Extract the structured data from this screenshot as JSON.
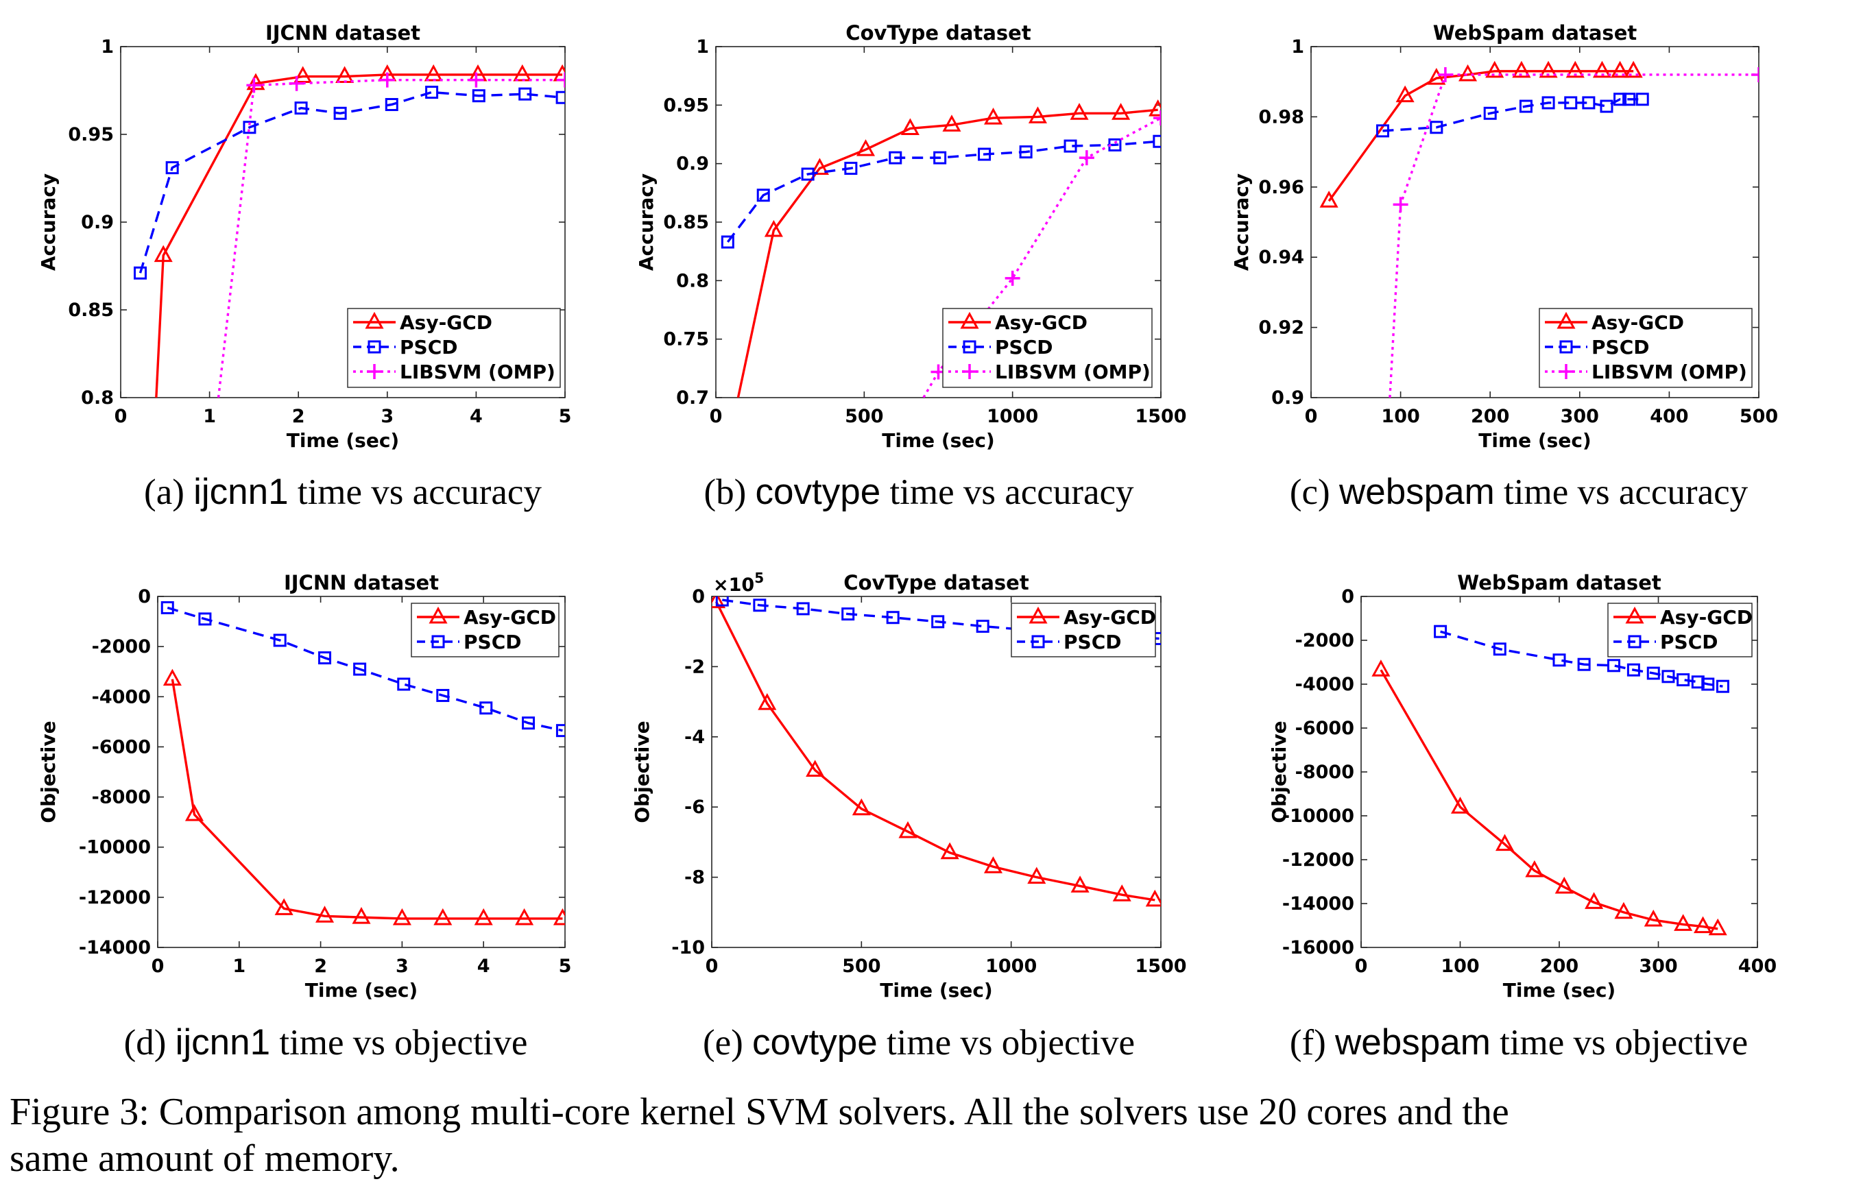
{
  "chart_data": [
    {
      "id": "a",
      "type": "line",
      "title": "IJCNN dataset",
      "xlabel": "Time (sec)",
      "ylabel": "Accuracy",
      "xlim": [
        0,
        5
      ],
      "ylim": [
        0.8,
        1
      ],
      "xticks": [
        0,
        1,
        2,
        3,
        4,
        5
      ],
      "xtick_labels": [
        "0",
        "1",
        "2",
        "3",
        "4",
        "5"
      ],
      "yticks": [
        0.8,
        0.85,
        0.9,
        0.95,
        1
      ],
      "ytick_labels": [
        "0.8",
        "0.85",
        "0.9",
        "0.95",
        "1"
      ],
      "legend": "bottom-right",
      "series": [
        {
          "name": "Asy-GCD",
          "x": [
            0.4,
            0.48,
            1.52,
            2.05,
            2.52,
            3.0,
            3.52,
            4.02,
            4.52,
            4.97
          ],
          "y": [
            0.8,
            0.881,
            0.979,
            0.983,
            0.983,
            0.984,
            0.984,
            0.984,
            0.984,
            0.984
          ]
        },
        {
          "name": "PSCD",
          "x": [
            0.22,
            0.58,
            1.45,
            2.03,
            2.47,
            3.05,
            3.5,
            4.03,
            4.55,
            4.97
          ],
          "y": [
            0.871,
            0.931,
            0.954,
            0.965,
            0.962,
            0.967,
            0.974,
            0.972,
            0.973,
            0.971
          ]
        },
        {
          "name": "LIBSVM (OMP)",
          "x": [
            1.1,
            1.5,
            1.98,
            3.0,
            4.0,
            5.0
          ],
          "y": [
            0.8,
            0.978,
            0.979,
            0.981,
            0.981,
            0.981
          ]
        }
      ]
    },
    {
      "id": "b",
      "type": "line",
      "title": "CovType dataset",
      "xlabel": "Time (sec)",
      "ylabel": "Accuracy",
      "xlim": [
        0,
        1500
      ],
      "ylim": [
        0.7,
        1
      ],
      "xticks": [
        0,
        500,
        1000,
        1500
      ],
      "xtick_labels": [
        "0",
        "500",
        "1000",
        "1500"
      ],
      "yticks": [
        0.7,
        0.75,
        0.8,
        0.85,
        0.9,
        0.95,
        1
      ],
      "ytick_labels": [
        "0.7",
        "0.75",
        "0.8",
        "0.85",
        "0.9",
        "0.95",
        "1"
      ],
      "legend": "bottom-right",
      "series": [
        {
          "name": "Asy-GCD",
          "x": [
            75,
            195,
            350,
            505,
            655,
            795,
            935,
            1085,
            1225,
            1365,
            1490
          ],
          "y": [
            0.7,
            0.843,
            0.896,
            0.912,
            0.93,
            0.933,
            0.939,
            0.94,
            0.943,
            0.943,
            0.946
          ]
        },
        {
          "name": "PSCD",
          "x": [
            40,
            160,
            310,
            455,
            605,
            755,
            905,
            1045,
            1195,
            1345,
            1495
          ],
          "y": [
            0.833,
            0.873,
            0.891,
            0.896,
            0.905,
            0.905,
            0.908,
            0.91,
            0.915,
            0.916,
            0.919
          ]
        },
        {
          "name": "LIBSVM (OMP)",
          "x": [
            700,
            750,
            1000,
            1250,
            1500
          ],
          "y": [
            0.7,
            0.722,
            0.802,
            0.905,
            0.939
          ]
        }
      ]
    },
    {
      "id": "c",
      "type": "line",
      "title": "WebSpam dataset",
      "xlabel": "Time (sec)",
      "ylabel": "Accuracy",
      "xlim": [
        0,
        500
      ],
      "ylim": [
        0.9,
        1
      ],
      "xticks": [
        0,
        100,
        200,
        300,
        400,
        500
      ],
      "xtick_labels": [
        "0",
        "100",
        "200",
        "300",
        "400",
        "500"
      ],
      "yticks": [
        0.9,
        0.92,
        0.94,
        0.96,
        0.98,
        1
      ],
      "ytick_labels": [
        "0.9",
        "0.92",
        "0.94",
        "0.96",
        "0.98",
        "1"
      ],
      "legend": "bottom-right",
      "series": [
        {
          "name": "Asy-GCD",
          "x": [
            20,
            105,
            140,
            175,
            205,
            235,
            265,
            295,
            325,
            345,
            360
          ],
          "y": [
            0.956,
            0.986,
            0.991,
            0.992,
            0.993,
            0.993,
            0.993,
            0.993,
            0.993,
            0.993,
            0.993
          ]
        },
        {
          "name": "PSCD",
          "x": [
            80,
            140,
            200,
            240,
            265,
            290,
            310,
            330,
            345,
            355,
            370
          ],
          "y": [
            0.976,
            0.977,
            0.981,
            0.983,
            0.984,
            0.984,
            0.984,
            0.983,
            0.985,
            0.985,
            0.985
          ]
        },
        {
          "name": "LIBSVM (OMP)",
          "x": [
            88,
            100,
            150,
            500
          ],
          "y": [
            0.9,
            0.955,
            0.992,
            0.992
          ]
        }
      ]
    },
    {
      "id": "d",
      "type": "line",
      "title": "IJCNN dataset",
      "xlabel": "Time (sec)",
      "ylabel": "Objective",
      "xlim": [
        0,
        5
      ],
      "ylim": [
        -14000,
        0
      ],
      "xticks": [
        0,
        1,
        2,
        3,
        4,
        5
      ],
      "xtick_labels": [
        "0",
        "1",
        "2",
        "3",
        "4",
        "5"
      ],
      "yticks": [
        -14000,
        -12000,
        -10000,
        -8000,
        -6000,
        -4000,
        -2000,
        0
      ],
      "ytick_labels": [
        "-14000",
        "-12000",
        "-10000",
        "-8000",
        "-6000",
        "-4000",
        "-2000",
        "0"
      ],
      "legend": "top-right",
      "series": [
        {
          "name": "Asy-GCD",
          "x": [
            0.18,
            0.45,
            1.55,
            2.05,
            2.5,
            3.0,
            3.5,
            4.0,
            4.5,
            4.97
          ],
          "y": [
            -3300,
            -8700,
            -12450,
            -12750,
            -12800,
            -12850,
            -12850,
            -12850,
            -12850,
            -12850
          ]
        },
        {
          "name": "PSCD",
          "x": [
            0.12,
            0.58,
            1.5,
            2.05,
            2.48,
            3.02,
            3.5,
            4.03,
            4.55,
            4.97
          ],
          "y": [
            -450,
            -900,
            -1750,
            -2450,
            -2900,
            -3500,
            -3950,
            -4450,
            -5050,
            -5350
          ]
        }
      ]
    },
    {
      "id": "e",
      "type": "line",
      "title": "CovType dataset",
      "xlabel": "Time (sec)",
      "ylabel": "Objective",
      "y_multiplier": "×10",
      "y_multiplier_exp": "5",
      "xlim": [
        0,
        1500
      ],
      "ylim": [
        -10,
        0
      ],
      "xticks": [
        0,
        500,
        1000,
        1500
      ],
      "xtick_labels": [
        "0",
        "500",
        "1000",
        "1500"
      ],
      "yticks": [
        -10,
        -8,
        -6,
        -4,
        -2,
        0
      ],
      "ytick_labels": [
        "-10",
        "-8",
        "-6",
        "-4",
        "-2",
        "0"
      ],
      "legend": "top-right",
      "series": [
        {
          "name": "Asy-GCD",
          "x": [
            15,
            185,
            345,
            500,
            655,
            795,
            940,
            1085,
            1230,
            1370,
            1480
          ],
          "y": [
            -0.15,
            -3.05,
            -4.95,
            -6.05,
            -6.7,
            -7.3,
            -7.7,
            -8.0,
            -8.25,
            -8.5,
            -8.65
          ]
        },
        {
          "name": "PSCD",
          "x": [
            35,
            160,
            305,
            455,
            605,
            755,
            905,
            1050,
            1200,
            1345,
            1495
          ],
          "y": [
            -0.1,
            -0.25,
            -0.35,
            -0.5,
            -0.6,
            -0.72,
            -0.85,
            -0.95,
            -1.05,
            -1.15,
            -1.2
          ]
        }
      ]
    },
    {
      "id": "f",
      "type": "line",
      "title": "WebSpam dataset",
      "xlabel": "Time (sec)",
      "ylabel": "Objective",
      "xlim": [
        0,
        400
      ],
      "ylim": [
        -16000,
        0
      ],
      "xticks": [
        0,
        100,
        200,
        300,
        400
      ],
      "xtick_labels": [
        "0",
        "100",
        "200",
        "300",
        "400"
      ],
      "yticks": [
        -16000,
        -14000,
        -12000,
        -10000,
        -8000,
        -6000,
        -4000,
        -2000,
        0
      ],
      "ytick_labels": [
        "-16000",
        "-14000",
        "-12000",
        "-10000",
        "-8000",
        "-6000",
        "-4000",
        "-2000",
        "0"
      ],
      "legend": "top-right",
      "series": [
        {
          "name": "Asy-GCD",
          "x": [
            20,
            100,
            145,
            175,
            205,
            235,
            265,
            295,
            325,
            345,
            360
          ],
          "y": [
            -3350,
            -9600,
            -11300,
            -12500,
            -13250,
            -13950,
            -14400,
            -14750,
            -14950,
            -15050,
            -15150
          ]
        },
        {
          "name": "PSCD",
          "x": [
            80,
            140,
            200,
            225,
            255,
            275,
            295,
            310,
            325,
            340,
            350,
            365
          ],
          "y": [
            -1600,
            -2400,
            -2900,
            -3100,
            -3150,
            -3350,
            -3500,
            -3650,
            -3800,
            -3900,
            -4000,
            -4100
          ]
        }
      ]
    }
  ],
  "series_styles": {
    "Asy-GCD": {
      "color": "#ff0000",
      "marker": "triangle",
      "dash": "solid"
    },
    "PSCD": {
      "color": "#0000ff",
      "marker": "square",
      "dash": "dashed"
    },
    "LIBSVM (OMP)": {
      "color": "#ff00ff",
      "marker": "plus",
      "dash": "dotted"
    }
  },
  "captions": [
    {
      "id": "a",
      "tag": "(a)",
      "name": "ijcnn1",
      "rest": "time vs accuracy"
    },
    {
      "id": "b",
      "tag": "(b)",
      "name": "covtype",
      "rest": "time vs accuracy"
    },
    {
      "id": "c",
      "tag": "(c)",
      "name": "webspam",
      "rest": "time vs accuracy"
    },
    {
      "id": "d",
      "tag": "(d)",
      "name": "ijcnn1",
      "rest": "time vs objective"
    },
    {
      "id": "e",
      "tag": "(e)",
      "name": "covtype",
      "rest": "time vs objective"
    },
    {
      "id": "f",
      "tag": "(f)",
      "name": "webspam",
      "rest": "time vs objective"
    }
  ],
  "figure_caption": {
    "line1": "Figure 3: Comparison among multi-core kernel SVM solvers. All the solvers use 20 cores and the",
    "line2": "same amount of memory."
  }
}
